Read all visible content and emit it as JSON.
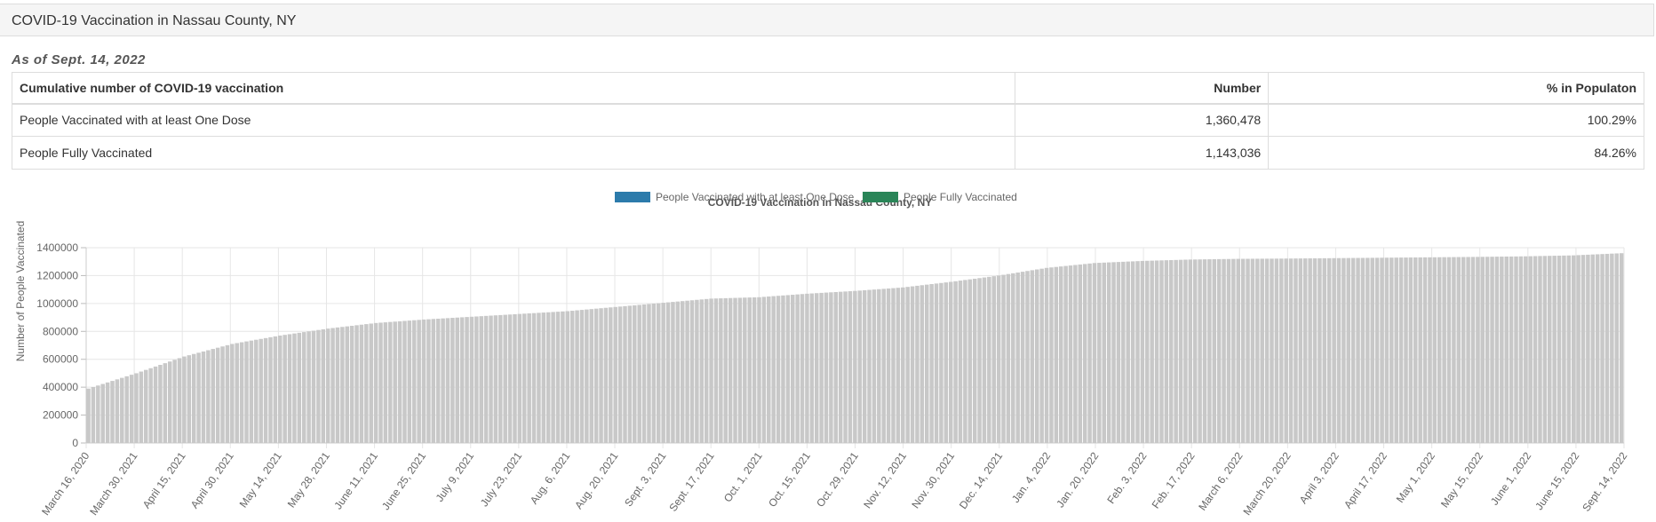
{
  "header": {
    "title": "COVID-19 Vaccination in Nassau County, NY"
  },
  "as_of": "As of Sept. 14, 2022",
  "summary_table": {
    "headers": [
      "Cumulative number of COVID-19 vaccination",
      "Number",
      "% in Populaton"
    ],
    "rows": [
      {
        "label": "People Vaccinated with at least One Dose",
        "number": "1,360,478",
        "percent": "100.29%"
      },
      {
        "label": "People Fully Vaccinated",
        "number": "1,143,036",
        "percent": "84.26%"
      }
    ]
  },
  "chart_data": {
    "type": "bar",
    "title": "COVID-19 Vaccination in Nassau County, NY",
    "ylabel": "Number of People Vaccinated",
    "xlabel": "",
    "ylim": [
      0,
      1400000
    ],
    "yticks": [
      0,
      200000,
      400000,
      600000,
      800000,
      1000000,
      1200000,
      1400000
    ],
    "grid": true,
    "legend": "top-center",
    "colors": {
      "one_dose": "#2c7bab",
      "fully": "#2a8558",
      "bars": "#c8c8c8"
    },
    "series": [
      {
        "name": "People Vaccinated with at least One Dose"
      },
      {
        "name": "People Fully Vaccinated"
      }
    ],
    "categories": [
      "March 16, 2020",
      "March 30, 2021",
      "April 15, 2021",
      "April 30, 2021",
      "May 14, 2021",
      "May 28, 2021",
      "June 11, 2021",
      "June 25, 2021",
      "July 9, 2021",
      "July 23, 2021",
      "Aug. 6, 2021",
      "Aug. 20, 2021",
      "Sept. 3, 2021",
      "Sept. 17, 2021",
      "Oct. 1, 2021",
      "Oct. 15, 2021",
      "Oct. 29, 2021",
      "Nov. 12, 2021",
      "Nov. 30, 2021",
      "Dec. 14, 2021",
      "Jan. 4, 2022",
      "Jan. 20, 2022",
      "Feb. 3, 2022",
      "Feb. 17, 2022",
      "March 6, 2022",
      "March 20, 2022",
      "April 3, 2022",
      "April 17, 2022",
      "May 1, 2022",
      "May 15, 2022",
      "June 1, 2022",
      "June 15, 2022",
      "Sept. 14, 2022"
    ],
    "values": [
      390000,
      500000,
      620000,
      710000,
      770000,
      820000,
      860000,
      885000,
      905000,
      925000,
      945000,
      975000,
      1005000,
      1035000,
      1045000,
      1070000,
      1090000,
      1115000,
      1155000,
      1200000,
      1255000,
      1290000,
      1305000,
      1315000,
      1320000,
      1322000,
      1325000,
      1328000,
      1331000,
      1334000,
      1338000,
      1345000,
      1360478
    ]
  }
}
